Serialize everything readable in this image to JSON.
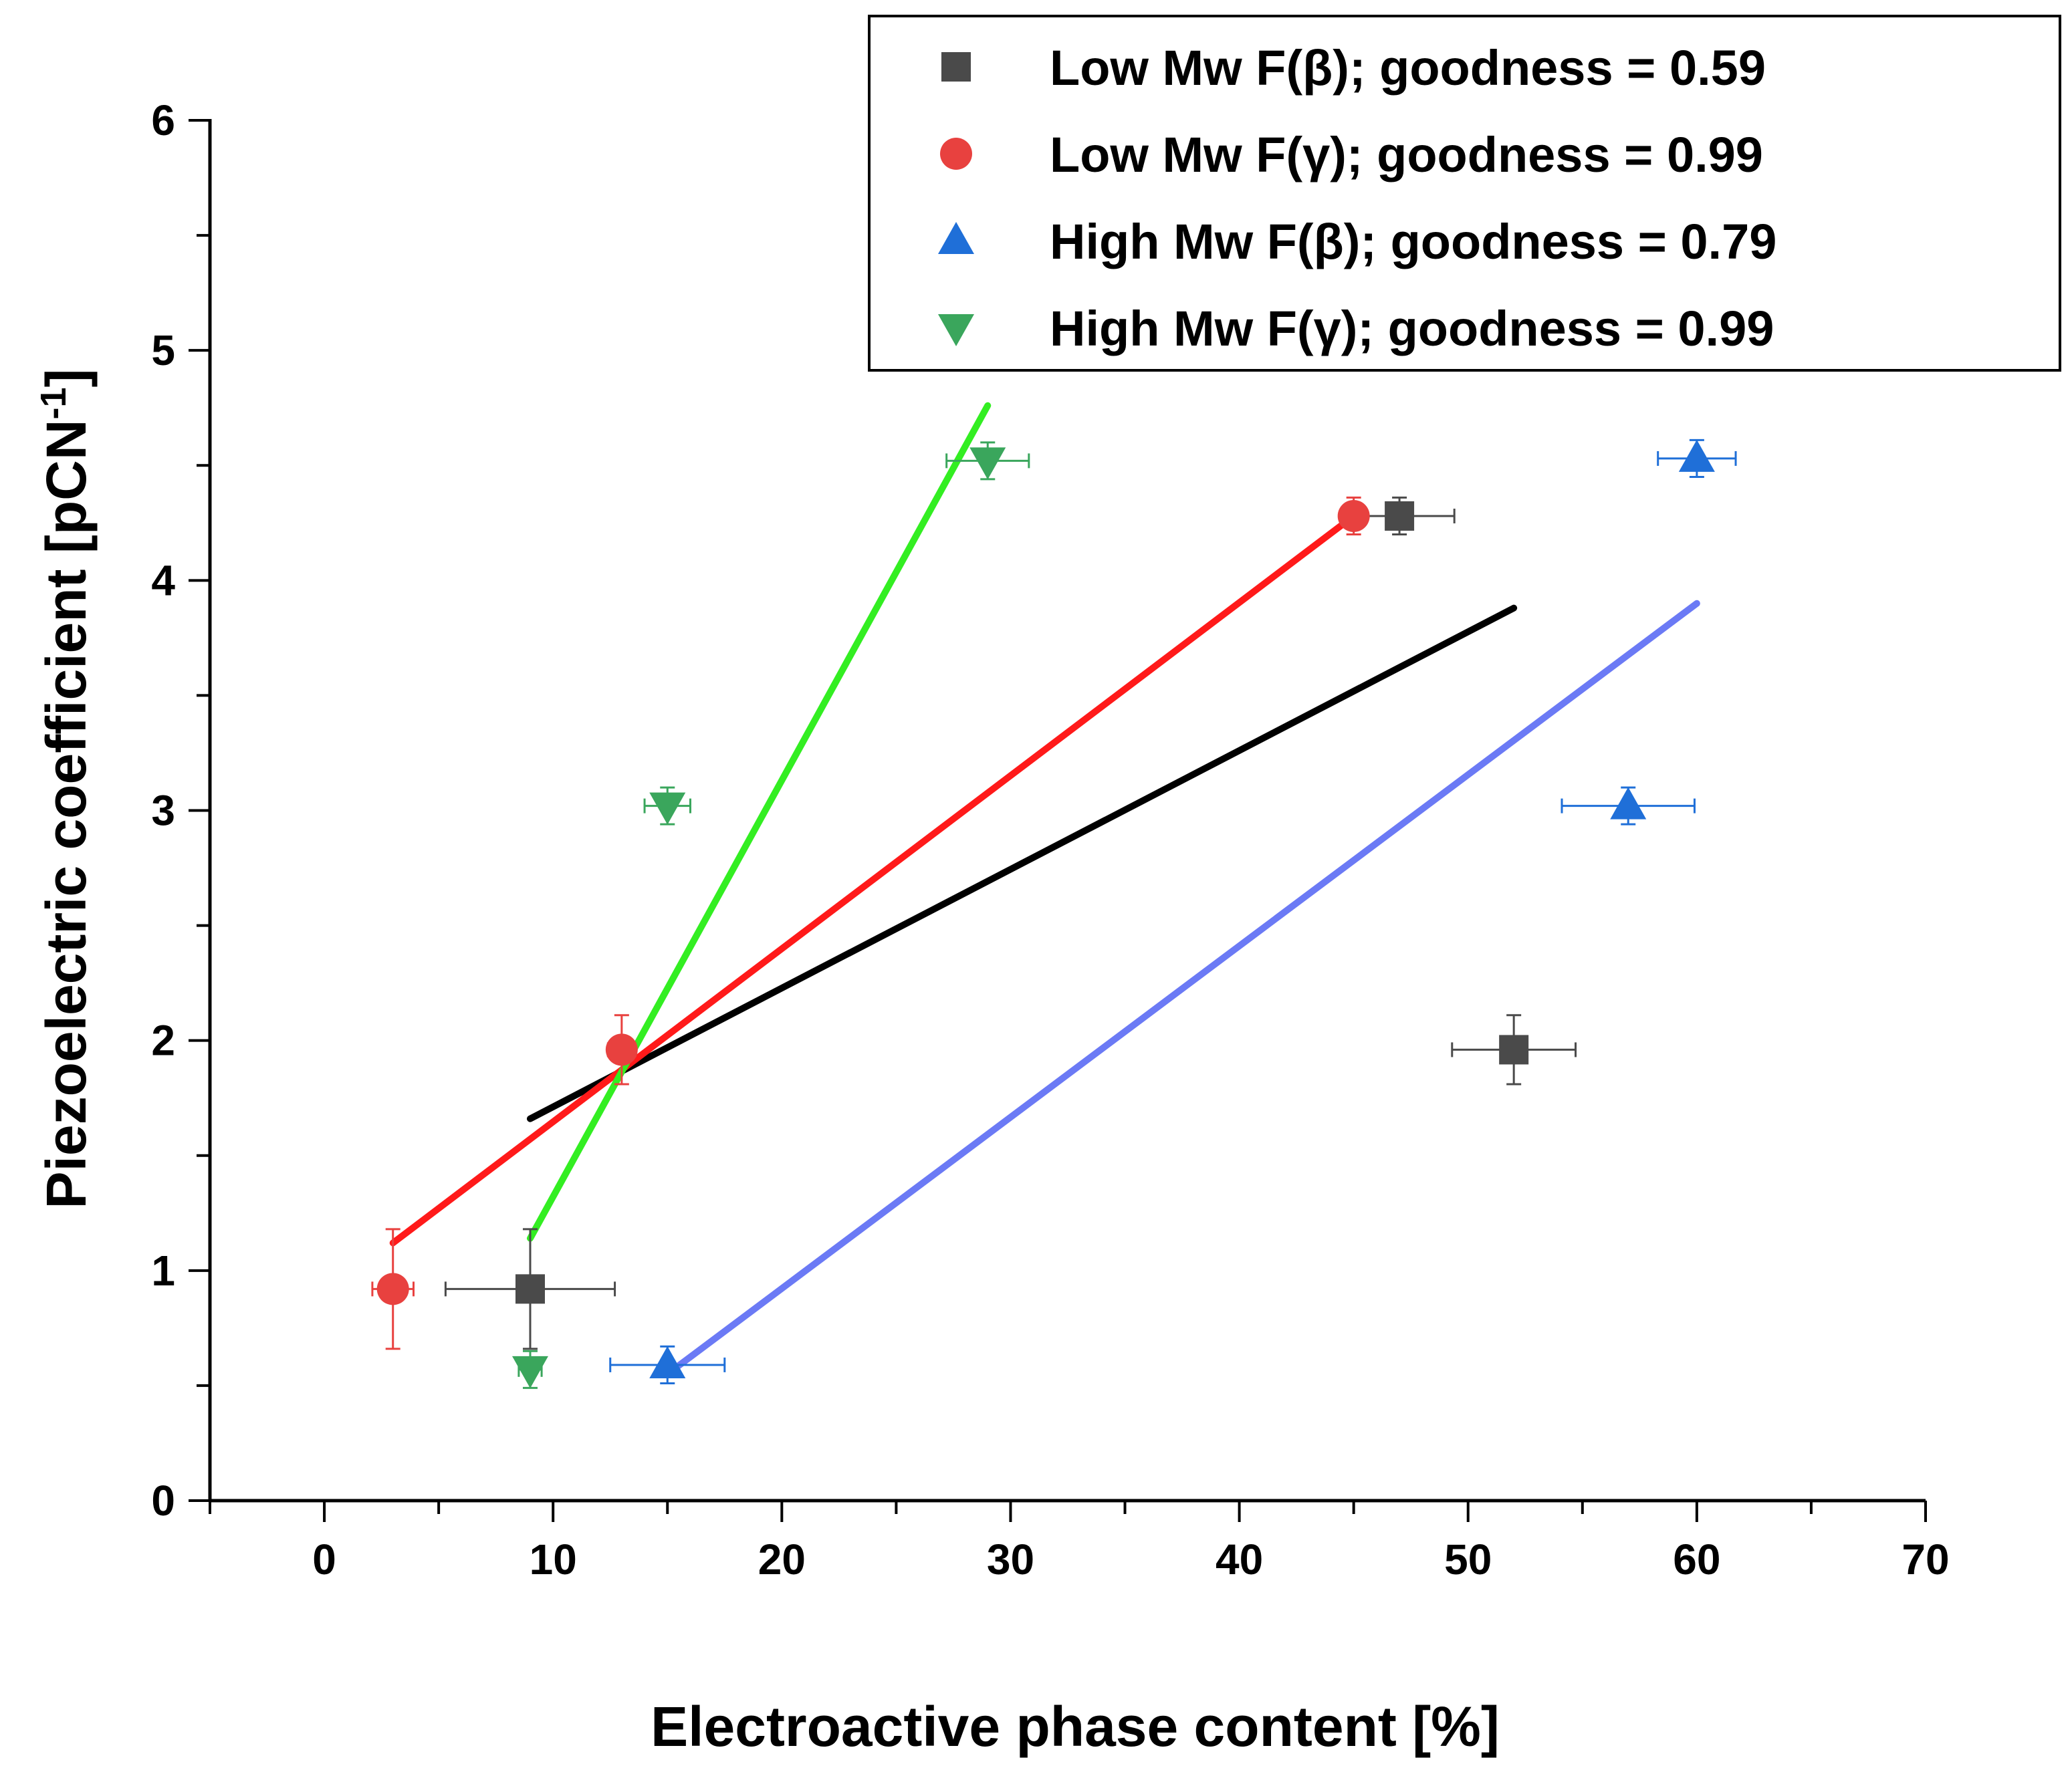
{
  "chart_data": {
    "type": "scatter",
    "title": "",
    "xlabel": "Electroactive phase content [%]",
    "ylabel_main": "Piezoelectric coefficient [pCN",
    "ylabel_sup": "-1",
    "ylabel_close": "]",
    "xlim": [
      -5,
      70
    ],
    "ylim": [
      0,
      6
    ],
    "xticks": [
      "0",
      "10",
      "20",
      "30",
      "40",
      "50",
      "60",
      "70"
    ],
    "yticks": [
      "0",
      "1",
      "2",
      "3",
      "4",
      "5",
      "6"
    ],
    "grid": false,
    "legend_position": "top-right",
    "series": [
      {
        "name": "Low Mw F(β); goodness = 0.59",
        "marker": "square",
        "color": "#4a4a4a",
        "points": [
          {
            "x": 9,
            "y": 0.92,
            "xerr": 3.7,
            "yerr": 0.26
          },
          {
            "x": 52,
            "y": 1.96,
            "xerr": 2.7,
            "yerr": 0.15
          },
          {
            "x": 47,
            "y": 4.28,
            "xerr": 2.4,
            "yerr": 0.08
          }
        ],
        "fit": {
          "x1": 9,
          "y1": 1.66,
          "x2": 52,
          "y2": 3.88,
          "color": "#000000"
        }
      },
      {
        "name": "Low Mw F(γ); goodness = 0.99",
        "marker": "circle",
        "color": "#e8413f",
        "points": [
          {
            "x": 3,
            "y": 0.92,
            "xerr": 0.9,
            "yerr": 0.26
          },
          {
            "x": 13,
            "y": 1.96,
            "xerr": 0.6,
            "yerr": 0.15
          },
          {
            "x": 45,
            "y": 4.28,
            "xerr": 0.5,
            "yerr": 0.08
          }
        ],
        "fit": {
          "x1": 3,
          "y1": 1.12,
          "x2": 45,
          "y2": 4.28,
          "color": "#ff1a1a"
        }
      },
      {
        "name": "High Mw F(β); goodness = 0.79",
        "marker": "triangle-up",
        "color": "#1f6fd8",
        "points": [
          {
            "x": 15,
            "y": 0.59,
            "xerr": 2.5,
            "yerr": 0.08
          },
          {
            "x": 57,
            "y": 3.02,
            "xerr": 2.9,
            "yerr": 0.08
          },
          {
            "x": 60,
            "y": 4.53,
            "xerr": 1.7,
            "yerr": 0.08
          }
        ],
        "fit": {
          "x1": 15,
          "y1": 0.55,
          "x2": 60,
          "y2": 3.9,
          "color": "#6b7af5"
        }
      },
      {
        "name": "High Mw F(γ); goodness = 0.99",
        "marker": "triangle-down",
        "color": "#3aa65c",
        "points": [
          {
            "x": 9,
            "y": 0.57,
            "xerr": 0.5,
            "yerr": 0.08
          },
          {
            "x": 15,
            "y": 3.02,
            "xerr": 1.0,
            "yerr": 0.08
          },
          {
            "x": 29,
            "y": 4.52,
            "xerr": 1.8,
            "yerr": 0.08
          }
        ],
        "fit": {
          "x1": 9,
          "y1": 1.14,
          "x2": 29,
          "y2": 4.76,
          "color": "#33ee22"
        }
      }
    ]
  }
}
